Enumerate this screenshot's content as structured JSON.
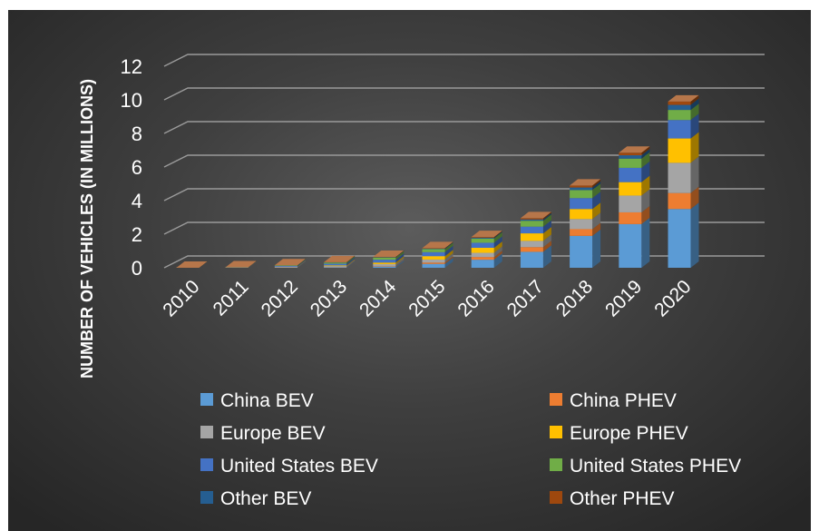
{
  "chart_data": {
    "type": "bar",
    "stacked": true,
    "three_d": true,
    "ylabel": "NUMBER OF VEHICLES (IN MILLIONS)",
    "xlabel": "",
    "ylim": [
      0,
      12
    ],
    "yticks": [
      "0",
      "2",
      "4",
      "6",
      "8",
      "10",
      "12"
    ],
    "grid": true,
    "legend_position": "bottom",
    "categories": [
      "2010",
      "2011",
      "2012",
      "2013",
      "2014",
      "2015",
      "2016",
      "2017",
      "2018",
      "2019",
      "2020"
    ],
    "series": [
      {
        "name": "China BEV",
        "color": "#5b9bd5",
        "values": [
          0.0,
          0.0,
          0.02,
          0.03,
          0.08,
          0.23,
          0.48,
          0.95,
          1.9,
          2.6,
          3.5
        ]
      },
      {
        "name": "China PHEV",
        "color": "#ed7d31",
        "values": [
          0.0,
          0.0,
          0.0,
          0.01,
          0.03,
          0.08,
          0.16,
          0.28,
          0.4,
          0.7,
          0.95
        ]
      },
      {
        "name": "Europe BEV",
        "color": "#a5a5a5",
        "values": [
          0.0,
          0.01,
          0.03,
          0.06,
          0.11,
          0.18,
          0.25,
          0.37,
          0.6,
          1.0,
          1.8
        ]
      },
      {
        "name": "Europe PHEV",
        "color": "#ffc000",
        "values": [
          0.0,
          0.0,
          0.01,
          0.04,
          0.09,
          0.2,
          0.3,
          0.45,
          0.6,
          0.8,
          1.45
        ]
      },
      {
        "name": "United States BEV",
        "color": "#4472c4",
        "values": [
          0.0,
          0.01,
          0.05,
          0.1,
          0.17,
          0.24,
          0.3,
          0.4,
          0.65,
          0.85,
          1.1
        ]
      },
      {
        "name": "United States PHEV",
        "color": "#70ad47",
        "values": [
          0.0,
          0.01,
          0.03,
          0.07,
          0.13,
          0.18,
          0.25,
          0.35,
          0.48,
          0.55,
          0.6
        ]
      },
      {
        "name": "Other BEV",
        "color": "#255e91",
        "values": [
          0.0,
          0.0,
          0.01,
          0.01,
          0.02,
          0.03,
          0.05,
          0.08,
          0.15,
          0.2,
          0.3
        ]
      },
      {
        "name": "Other PHEV",
        "color": "#9e480e",
        "values": [
          0.0,
          0.0,
          0.0,
          0.01,
          0.02,
          0.03,
          0.04,
          0.07,
          0.12,
          0.15,
          0.2
        ]
      }
    ]
  }
}
